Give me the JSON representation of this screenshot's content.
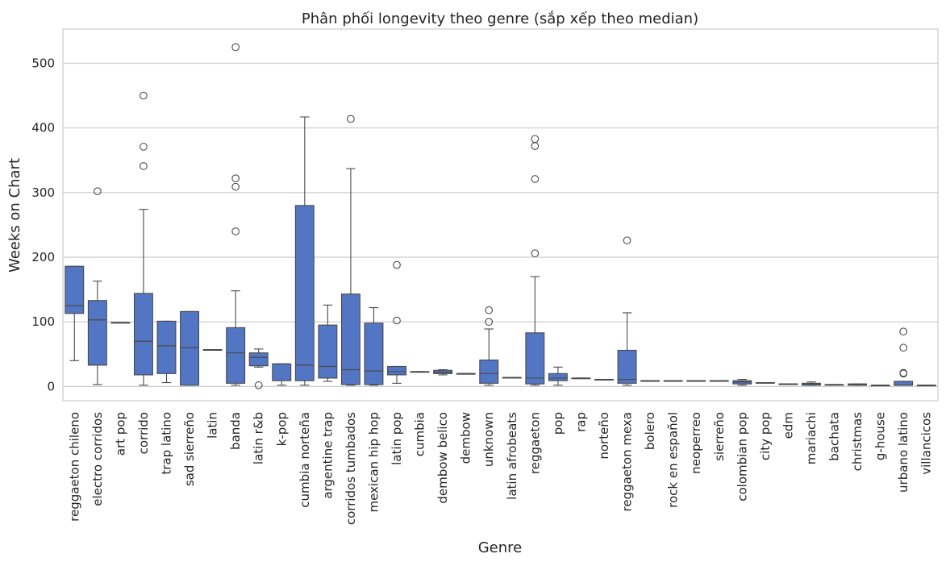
{
  "chart_data": {
    "type": "boxplot",
    "title": "Phân phối longevity theo genre (sắp xếp theo median)",
    "xlabel": "Genre",
    "ylabel": "Weeks on Chart",
    "ylim": [
      -22,
      553
    ],
    "yticks": [
      0,
      100,
      200,
      300,
      400,
      500
    ],
    "grid": true,
    "box_color": "#5276c4",
    "line_color": "#4a4a4a",
    "genres": [
      {
        "name": "reggaeton chileno",
        "whislo": 40,
        "q1": 113,
        "med": 125,
        "q3": 186,
        "whishi": 186,
        "fliers": []
      },
      {
        "name": "electro corridos",
        "whislo": 3,
        "q1": 33,
        "med": 103,
        "q3": 133,
        "whishi": 163,
        "fliers": [
          302
        ]
      },
      {
        "name": "art pop",
        "whislo": 99,
        "q1": 99,
        "med": 99,
        "q3": 99,
        "whishi": 99,
        "fliers": []
      },
      {
        "name": "corrido",
        "whislo": 2,
        "q1": 18,
        "med": 70,
        "q3": 144,
        "whishi": 274,
        "fliers": [
          341,
          371,
          450
        ]
      },
      {
        "name": "trap latino",
        "whislo": 6,
        "q1": 20,
        "med": 63,
        "q3": 101,
        "whishi": 101,
        "fliers": []
      },
      {
        "name": "sad sierreño",
        "whislo": 2,
        "q1": 2,
        "med": 60,
        "q3": 116,
        "whishi": 116,
        "fliers": []
      },
      {
        "name": "latin",
        "whislo": 57,
        "q1": 57,
        "med": 57,
        "q3": 57,
        "whishi": 57,
        "fliers": []
      },
      {
        "name": "banda",
        "whislo": 2,
        "q1": 5,
        "med": 52,
        "q3": 91,
        "whishi": 148,
        "fliers": [
          240,
          309,
          322,
          525
        ]
      },
      {
        "name": "latin r&b",
        "whislo": 30,
        "q1": 32,
        "med": 45,
        "q3": 52,
        "whishi": 58,
        "fliers": [
          2
        ]
      },
      {
        "name": "k-pop",
        "whislo": 2,
        "q1": 9,
        "med": 35,
        "q3": 35,
        "whishi": 35,
        "fliers": []
      },
      {
        "name": "cumbia norteña",
        "whislo": 2,
        "q1": 9,
        "med": 33,
        "q3": 280,
        "whishi": 417,
        "fliers": []
      },
      {
        "name": "argentine trap",
        "whislo": 8,
        "q1": 13,
        "med": 31,
        "q3": 95,
        "whishi": 126,
        "fliers": []
      },
      {
        "name": "corridos tumbados",
        "whislo": 2,
        "q1": 3,
        "med": 26,
        "q3": 143,
        "whishi": 337,
        "fliers": [
          414
        ]
      },
      {
        "name": "mexican hip hop",
        "whislo": 2,
        "q1": 3,
        "med": 24,
        "q3": 98,
        "whishi": 122,
        "fliers": []
      },
      {
        "name": "latin pop",
        "whislo": 5,
        "q1": 18,
        "med": 23,
        "q3": 31,
        "whishi": 31,
        "fliers": [
          102,
          188
        ]
      },
      {
        "name": "cumbia",
        "whislo": 23,
        "q1": 23,
        "med": 23,
        "q3": 23,
        "whishi": 23,
        "fliers": []
      },
      {
        "name": "dembow belico",
        "whislo": 18,
        "q1": 20,
        "med": 22,
        "q3": 25,
        "whishi": 26,
        "fliers": []
      },
      {
        "name": "dembow",
        "whislo": 20,
        "q1": 20,
        "med": 20,
        "q3": 20,
        "whishi": 20,
        "fliers": []
      },
      {
        "name": "unknown",
        "whislo": 2,
        "q1": 5,
        "med": 20,
        "q3": 41,
        "whishi": 89,
        "fliers": [
          100,
          118
        ]
      },
      {
        "name": "latin afrobeats",
        "whislo": 14,
        "q1": 14,
        "med": 14,
        "q3": 14,
        "whishi": 14,
        "fliers": []
      },
      {
        "name": "reggaeton",
        "whislo": 2,
        "q1": 4,
        "med": 13,
        "q3": 83,
        "whishi": 170,
        "fliers": [
          206,
          321,
          372,
          383
        ]
      },
      {
        "name": "pop",
        "whislo": 2,
        "q1": 9,
        "med": 13,
        "q3": 20,
        "whishi": 30,
        "fliers": []
      },
      {
        "name": "rap",
        "whislo": 13,
        "q1": 13,
        "med": 13,
        "q3": 13,
        "whishi": 13,
        "fliers": []
      },
      {
        "name": "norteño",
        "whislo": 11,
        "q1": 11,
        "med": 11,
        "q3": 11,
        "whishi": 11,
        "fliers": []
      },
      {
        "name": "reggaeton mexa",
        "whislo": 2,
        "q1": 5,
        "med": 11,
        "q3": 56,
        "whishi": 114,
        "fliers": [
          226
        ]
      },
      {
        "name": "bolero",
        "whislo": 9,
        "q1": 9,
        "med": 9,
        "q3": 9,
        "whishi": 9,
        "fliers": []
      },
      {
        "name": "rock en español",
        "whislo": 9,
        "q1": 9,
        "med": 9,
        "q3": 9,
        "whishi": 9,
        "fliers": []
      },
      {
        "name": "neoperreo",
        "whislo": 9,
        "q1": 9,
        "med": 9,
        "q3": 9,
        "whishi": 9,
        "fliers": []
      },
      {
        "name": "sierreño",
        "whislo": 9,
        "q1": 9,
        "med": 9,
        "q3": 9,
        "whishi": 9,
        "fliers": []
      },
      {
        "name": "colombian pop",
        "whislo": 2,
        "q1": 4,
        "med": 7,
        "q3": 9,
        "whishi": 11,
        "fliers": []
      },
      {
        "name": "city pop",
        "whislo": 6,
        "q1": 6,
        "med": 6,
        "q3": 6,
        "whishi": 6,
        "fliers": []
      },
      {
        "name": "edm",
        "whislo": 4,
        "q1": 4,
        "med": 4,
        "q3": 4,
        "whishi": 4,
        "fliers": []
      },
      {
        "name": "mariachi",
        "whislo": 2,
        "q1": 2,
        "med": 4,
        "q3": 5,
        "whishi": 7,
        "fliers": []
      },
      {
        "name": "bachata",
        "whislo": 3,
        "q1": 3,
        "med": 3,
        "q3": 3,
        "whishi": 3,
        "fliers": []
      },
      {
        "name": "christmas",
        "whislo": 2,
        "q1": 2,
        "med": 3,
        "q3": 4,
        "whishi": 4,
        "fliers": []
      },
      {
        "name": "g-house",
        "whislo": 2,
        "q1": 2,
        "med": 2,
        "q3": 2,
        "whishi": 2,
        "fliers": []
      },
      {
        "name": "urbano latino",
        "whislo": 2,
        "q1": 2,
        "med": 2,
        "q3": 8,
        "whishi": 8,
        "fliers": [
          20,
          21,
          60,
          85
        ]
      },
      {
        "name": "villancicos",
        "whislo": 2,
        "q1": 2,
        "med": 2,
        "q3": 2,
        "whishi": 2,
        "fliers": []
      }
    ]
  }
}
